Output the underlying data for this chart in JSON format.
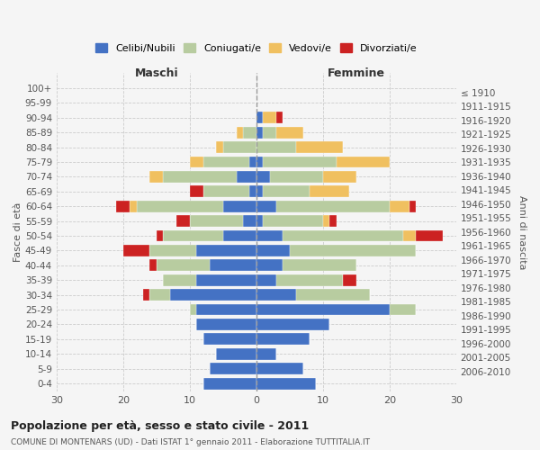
{
  "age_groups": [
    "0-4",
    "5-9",
    "10-14",
    "15-19",
    "20-24",
    "25-29",
    "30-34",
    "35-39",
    "40-44",
    "45-49",
    "50-54",
    "55-59",
    "60-64",
    "65-69",
    "70-74",
    "75-79",
    "80-84",
    "85-89",
    "90-94",
    "95-99",
    "100+"
  ],
  "birth_years": [
    "2006-2010",
    "2001-2005",
    "1996-2000",
    "1991-1995",
    "1986-1990",
    "1981-1985",
    "1976-1980",
    "1971-1975",
    "1966-1970",
    "1961-1965",
    "1956-1960",
    "1951-1955",
    "1946-1950",
    "1941-1945",
    "1936-1940",
    "1931-1935",
    "1926-1930",
    "1921-1925",
    "1916-1920",
    "1911-1915",
    "≤ 1910"
  ],
  "males": {
    "celibi": [
      8,
      7,
      6,
      8,
      9,
      9,
      13,
      9,
      7,
      9,
      5,
      2,
      5,
      1,
      3,
      1,
      0,
      0,
      0,
      0,
      0
    ],
    "coniugati": [
      0,
      0,
      0,
      0,
      0,
      1,
      3,
      5,
      8,
      7,
      9,
      8,
      13,
      7,
      11,
      7,
      5,
      2,
      0,
      0,
      0
    ],
    "vedovi": [
      0,
      0,
      0,
      0,
      0,
      0,
      0,
      0,
      0,
      0,
      0,
      0,
      1,
      0,
      2,
      2,
      1,
      1,
      0,
      0,
      0
    ],
    "divorziati": [
      0,
      0,
      0,
      0,
      0,
      0,
      1,
      0,
      1,
      4,
      1,
      2,
      2,
      2,
      0,
      0,
      0,
      0,
      0,
      0,
      0
    ]
  },
  "females": {
    "nubili": [
      9,
      7,
      3,
      8,
      11,
      20,
      6,
      3,
      4,
      5,
      4,
      1,
      3,
      1,
      2,
      1,
      0,
      1,
      1,
      0,
      0
    ],
    "coniugate": [
      0,
      0,
      0,
      0,
      0,
      4,
      11,
      10,
      11,
      19,
      18,
      9,
      17,
      7,
      8,
      11,
      6,
      2,
      0,
      0,
      0
    ],
    "vedove": [
      0,
      0,
      0,
      0,
      0,
      0,
      0,
      0,
      0,
      0,
      2,
      1,
      3,
      6,
      5,
      8,
      7,
      4,
      2,
      0,
      0
    ],
    "divorziate": [
      0,
      0,
      0,
      0,
      0,
      0,
      0,
      2,
      0,
      0,
      4,
      1,
      1,
      0,
      0,
      0,
      0,
      0,
      1,
      0,
      0
    ]
  },
  "color_celibi": "#4472c4",
  "color_coniugati": "#b8cca0",
  "color_vedovi": "#f0c060",
  "color_divorziati": "#cc2222",
  "title_main": "Popolazione per età, sesso e stato civile - 2011",
  "title_sub": "COMUNE DI MONTENARS (UD) - Dati ISTAT 1° gennaio 2011 - Elaborazione TUTTITALIA.IT",
  "xlabel_left": "Maschi",
  "xlabel_right": "Femmine",
  "ylabel_left": "Fasce di età",
  "ylabel_right": "Anni di nascita",
  "xlim": 30,
  "legend_labels": [
    "Celibi/Nubili",
    "Coniugati/e",
    "Vedovi/e",
    "Divorziati/e"
  ],
  "bg_color": "#f5f5f5",
  "grid_color": "#cccccc"
}
